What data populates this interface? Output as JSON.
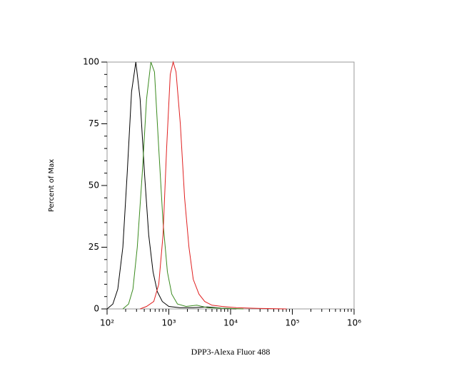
{
  "chart_data": {
    "type": "line",
    "ylabel": "Percent of Max",
    "xlabel": "DPP3-Alexa Fluor 488",
    "xscale": "log",
    "xlim": [
      100,
      1000000
    ],
    "ylim": [
      0,
      100
    ],
    "xticks": [
      {
        "value": 100,
        "label": "10²"
      },
      {
        "value": 1000,
        "label": "10³"
      },
      {
        "value": 10000,
        "label": "10⁴"
      },
      {
        "value": 100000,
        "label": "10⁵"
      },
      {
        "value": 1000000,
        "label": "10⁶"
      }
    ],
    "yticks": [
      0,
      25,
      50,
      75,
      100
    ],
    "series": [
      {
        "color": "#000000",
        "x": [
          100,
          124,
          149,
          180,
          212,
          249,
          292,
          343,
          403,
          472,
          555,
          651,
          785,
          1000,
          1494,
          2486,
          4247,
          7250,
          12400
        ],
        "values": [
          0,
          2,
          8,
          25,
          55,
          88,
          100,
          85,
          55,
          30,
          15,
          7,
          3,
          1,
          0.5,
          0.5,
          0.8,
          0.3,
          0
        ]
      },
      {
        "color": "#3a8a1e",
        "x": [
          180,
          223,
          262,
          308,
          371,
          436,
          512,
          585,
          687,
          807,
          948,
          1114,
          1380,
          1901,
          2840,
          4247,
          7250,
          16200
        ],
        "values": [
          0,
          2,
          8,
          25,
          55,
          85,
          100,
          96,
          65,
          35,
          15,
          6,
          2,
          1,
          1.5,
          0.5,
          0.3,
          0
        ]
      },
      {
        "color": "#e02020",
        "x": [
          343,
          436,
          570,
          687,
          807,
          922,
          1054,
          1175,
          1307,
          1535,
          1803,
          2118,
          2486,
          3076,
          3810,
          4990,
          7250,
          12400,
          27700,
          80700
        ],
        "values": [
          0,
          1,
          3,
          10,
          30,
          65,
          95,
          100,
          96,
          75,
          45,
          25,
          12,
          6,
          3,
          1.5,
          1,
          0.5,
          0.2,
          0
        ]
      }
    ]
  }
}
